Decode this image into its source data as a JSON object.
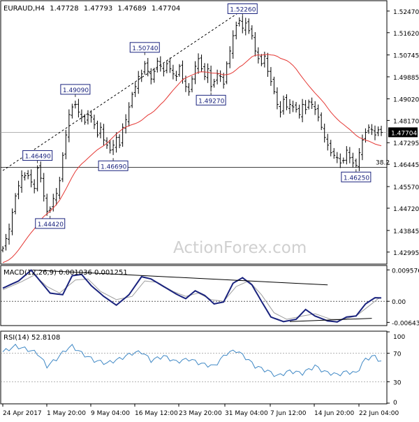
{
  "chart_data": [
    {
      "type": "candlestick",
      "symbol_line": {
        "symbol": "EURAUD,H4",
        "open": "1.47728",
        "high": "1.47793",
        "low": "1.47689",
        "close": "1.47704"
      },
      "x_tick_labels": [
        "24 Apr 2017",
        "1 May 20:00",
        "9 May 04:00",
        "16 May 12:00",
        "23 May 20:00",
        "31 May 04:00",
        "7 Jun 12:00",
        "14 Jun 20:00",
        "22 Jun 04:00"
      ],
      "ylim": [
        1.4255,
        1.5285
      ],
      "y_tick_labels": [
        "1.52470",
        "1.51620",
        "1.50745",
        "1.49885",
        "1.49020",
        "1.48170",
        "1.47295",
        "1.46445",
        "1.45570",
        "1.44720",
        "1.43845",
        "1.42995"
      ],
      "y_tick_values": [
        1.5247,
        1.5162,
        1.50745,
        1.49885,
        1.4902,
        1.4817,
        1.47295,
        1.46445,
        1.4557,
        1.4472,
        1.43845,
        1.42995
      ],
      "current_price_label": "1.47704",
      "current_price": 1.47704,
      "support_line": {
        "value": 1.4633,
        "label": "38.2"
      },
      "swing_labels": [
        {
          "text": "1.52260",
          "bar": 76,
          "value": 1.5226
        },
        {
          "text": "1.50740",
          "bar": 45,
          "value": 1.5074
        },
        {
          "text": "1.49090",
          "bar": 23,
          "value": 1.4909
        },
        {
          "text": "1.49270",
          "bar": 66,
          "value": 1.4927
        },
        {
          "text": "1.46490",
          "bar": 11,
          "value": 1.4649
        },
        {
          "text": "1.46690",
          "bar": 35,
          "value": 1.4669
        },
        {
          "text": "1.44420",
          "bar": 15,
          "value": 1.4442
        },
        {
          "text": "1.46250",
          "bar": 112,
          "value": 1.4625
        }
      ],
      "trendline": {
        "from": {
          "bar": 0,
          "value": 1.462
        },
        "to": {
          "bar": 75,
          "value": 1.5243
        }
      },
      "watermark": "ActionForex.com",
      "moving_average_color": "#e53935",
      "candle_color": "#000000",
      "ohlc_anchor_closes": [
        [
          0,
          1.4315
        ],
        [
          2,
          1.439
        ],
        [
          4,
          1.452
        ],
        [
          6,
          1.46
        ],
        [
          8,
          1.46
        ],
        [
          10,
          1.455
        ],
        [
          11,
          1.463
        ],
        [
          12,
          1.459
        ],
        [
          13,
          1.452
        ],
        [
          14,
          1.446
        ],
        [
          15,
          1.447
        ],
        [
          16,
          1.451
        ],
        [
          17,
          1.453
        ],
        [
          18,
          1.458
        ],
        [
          19,
          1.468
        ],
        [
          20,
          1.476
        ],
        [
          21,
          1.484
        ],
        [
          22,
          1.487
        ],
        [
          23,
          1.488
        ],
        [
          24,
          1.485
        ],
        [
          25,
          1.483
        ],
        [
          26,
          1.481
        ],
        [
          27,
          1.484
        ],
        [
          28,
          1.483
        ],
        [
          29,
          1.48
        ],
        [
          30,
          1.476
        ],
        [
          31,
          1.479
        ],
        [
          32,
          1.474
        ],
        [
          33,
          1.472
        ],
        [
          34,
          1.47
        ],
        [
          35,
          1.472
        ],
        [
          36,
          1.475
        ],
        [
          37,
          1.472
        ],
        [
          38,
          1.479
        ],
        [
          39,
          1.482
        ],
        [
          40,
          1.487
        ],
        [
          41,
          1.492
        ],
        [
          42,
          1.495
        ],
        [
          43,
          1.499
        ],
        [
          44,
          1.5
        ],
        [
          45,
          1.504
        ],
        [
          46,
          1.501
        ],
        [
          47,
          1.498
        ],
        [
          48,
          1.501
        ],
        [
          49,
          1.505
        ],
        [
          50,
          1.503
        ],
        [
          51,
          1.501
        ],
        [
          52,
          1.504
        ],
        [
          53,
          1.502
        ],
        [
          54,
          1.5
        ],
        [
          55,
          1.499
        ],
        [
          56,
          1.503
        ],
        [
          57,
          1.498
        ],
        [
          58,
          1.495
        ],
        [
          59,
          1.493
        ],
        [
          60,
          1.498
        ],
        [
          61,
          1.503
        ],
        [
          62,
          1.506
        ],
        [
          63,
          1.502
        ],
        [
          64,
          1.499
        ],
        [
          65,
          1.502
        ],
        [
          66,
          1.495
        ],
        [
          67,
          1.497
        ],
        [
          68,
          1.5
        ],
        [
          69,
          1.499
        ],
        [
          70,
          1.496
        ],
        [
          71,
          1.504
        ],
        [
          72,
          1.509
        ],
        [
          73,
          1.515
        ],
        [
          74,
          1.519
        ],
        [
          75,
          1.521
        ],
        [
          76,
          1.518
        ],
        [
          77,
          1.52
        ],
        [
          78,
          1.517
        ],
        [
          79,
          1.515
        ],
        [
          80,
          1.509
        ],
        [
          81,
          1.506
        ],
        [
          82,
          1.504
        ],
        [
          83,
          1.507
        ],
        [
          84,
          1.501
        ],
        [
          85,
          1.497
        ],
        [
          86,
          1.493
        ],
        [
          87,
          1.488
        ],
        [
          88,
          1.485
        ],
        [
          89,
          1.49
        ],
        [
          90,
          1.487
        ],
        [
          91,
          1.488
        ],
        [
          92,
          1.487
        ],
        [
          93,
          1.486
        ],
        [
          94,
          1.484
        ],
        [
          95,
          1.488
        ],
        [
          96,
          1.486
        ],
        [
          97,
          1.489
        ],
        [
          98,
          1.488
        ],
        [
          99,
          1.486
        ],
        [
          100,
          1.483
        ],
        [
          101,
          1.479
        ],
        [
          102,
          1.475
        ],
        [
          103,
          1.472
        ],
        [
          104,
          1.469
        ],
        [
          105,
          1.468
        ],
        [
          106,
          1.467
        ],
        [
          107,
          1.465
        ],
        [
          108,
          1.466
        ],
        [
          109,
          1.47
        ],
        [
          110,
          1.467
        ],
        [
          111,
          1.465
        ],
        [
          112,
          1.464
        ],
        [
          113,
          1.469
        ],
        [
          114,
          1.474
        ],
        [
          115,
          1.477
        ],
        [
          116,
          1.479
        ],
        [
          117,
          1.478
        ],
        [
          118,
          1.476
        ],
        [
          119,
          1.478
        ],
        [
          120,
          1.477
        ]
      ]
    },
    {
      "type": "line",
      "title": "MACD(12,26,9) 0.001036 0.001251",
      "ylim": [
        -0.0072,
        0.0107
      ],
      "y_tick_labels": [
        "0.009576",
        "0.00",
        "-0.006433"
      ],
      "y_tick_values": [
        0.009576,
        0.0,
        -0.006433
      ],
      "zero_line": 0.0,
      "series": [
        {
          "name": "MACD",
          "color": "#1a237e",
          "anchors": [
            [
              0,
              0.004
            ],
            [
              5,
              0.0062
            ],
            [
              9,
              0.0095
            ],
            [
              12,
              0.006
            ],
            [
              15,
              0.0025
            ],
            [
              19,
              0.002
            ],
            [
              22,
              0.0078
            ],
            [
              25,
              0.0082
            ],
            [
              28,
              0.0048
            ],
            [
              32,
              0.0015
            ],
            [
              36,
              -0.0012
            ],
            [
              40,
              0.002
            ],
            [
              44,
              0.0075
            ],
            [
              47,
              0.0068
            ],
            [
              51,
              0.0045
            ],
            [
              55,
              0.0022
            ],
            [
              58,
              0.0008
            ],
            [
              61,
              0.0032
            ],
            [
              64,
              0.0018
            ],
            [
              67,
              -0.0008
            ],
            [
              70,
              -0.0002
            ],
            [
              73,
              0.0055
            ],
            [
              76,
              0.0072
            ],
            [
              79,
              0.005
            ],
            [
              82,
              0.0
            ],
            [
              85,
              -0.0048
            ],
            [
              89,
              -0.0062
            ],
            [
              93,
              -0.0055
            ],
            [
              96,
              -0.0025
            ],
            [
              99,
              -0.0045
            ],
            [
              103,
              -0.006
            ],
            [
              106,
              -0.0063
            ],
            [
              109,
              -0.0048
            ],
            [
              112,
              -0.0045
            ],
            [
              115,
              -0.0008
            ],
            [
              118,
              0.0011
            ],
            [
              121,
              0.001
            ]
          ]
        },
        {
          "name": "Signal",
          "color": "#9e9e9e",
          "anchors": [
            [
              0,
              0.0035
            ],
            [
              6,
              0.006
            ],
            [
              10,
              0.008
            ],
            [
              14,
              0.0045
            ],
            [
              18,
              0.0025
            ],
            [
              23,
              0.0065
            ],
            [
              27,
              0.0068
            ],
            [
              31,
              0.003
            ],
            [
              36,
              0.0005
            ],
            [
              41,
              0.0015
            ],
            [
              45,
              0.0062
            ],
            [
              49,
              0.0058
            ],
            [
              54,
              0.003
            ],
            [
              58,
              0.0015
            ],
            [
              62,
              0.0025
            ],
            [
              66,
              0.0005
            ],
            [
              70,
              0.0
            ],
            [
              74,
              0.0045
            ],
            [
              78,
              0.0062
            ],
            [
              82,
              0.002
            ],
            [
              86,
              -0.0035
            ],
            [
              90,
              -0.0055
            ],
            [
              95,
              -0.0045
            ],
            [
              99,
              -0.0038
            ],
            [
              104,
              -0.0055
            ],
            [
              108,
              -0.0055
            ],
            [
              112,
              -0.0045
            ],
            [
              116,
              -0.0015
            ],
            [
              119,
              0.0008
            ],
            [
              121,
              0.0013
            ]
          ]
        }
      ],
      "trendlines": [
        {
          "from": {
            "bar": 10,
            "value": 0.0095
          },
          "to": {
            "bar": 103,
            "value": 0.005
          }
        },
        {
          "from": {
            "bar": 91,
            "value": -0.0062
          },
          "to": {
            "bar": 117,
            "value": -0.0052
          }
        }
      ]
    },
    {
      "type": "line",
      "title": "RSI(14) 52.8108",
      "ylim": [
        0,
        100
      ],
      "y_tick_labels": [
        "100",
        "70",
        "30",
        "0"
      ],
      "y_tick_values": [
        100,
        70,
        30,
        0
      ],
      "reference_lines": [
        70,
        30
      ],
      "series": [
        {
          "name": "RSI(14)",
          "color": "#3f88c5",
          "anchors": [
            [
              0,
              72
            ],
            [
              4,
              80
            ],
            [
              8,
              75
            ],
            [
              11,
              70
            ],
            [
              14,
              52
            ],
            [
              17,
              62
            ],
            [
              20,
              75
            ],
            [
              22,
              80
            ],
            [
              25,
              70
            ],
            [
              29,
              60
            ],
            [
              33,
              56
            ],
            [
              37,
              62
            ],
            [
              41,
              70
            ],
            [
              44,
              72
            ],
            [
              47,
              60
            ],
            [
              51,
              66
            ],
            [
              55,
              58
            ],
            [
              59,
              62
            ],
            [
              63,
              55
            ],
            [
              67,
              52
            ],
            [
              71,
              70
            ],
            [
              74,
              74
            ],
            [
              77,
              64
            ],
            [
              80,
              52
            ],
            [
              84,
              45
            ],
            [
              87,
              38
            ],
            [
              91,
              45
            ],
            [
              95,
              42
            ],
            [
              99,
              52
            ],
            [
              102,
              44
            ],
            [
              106,
              40
            ],
            [
              109,
              44
            ],
            [
              112,
              42
            ],
            [
              115,
              62
            ],
            [
              118,
              66
            ],
            [
              121,
              53
            ]
          ]
        }
      ]
    }
  ]
}
